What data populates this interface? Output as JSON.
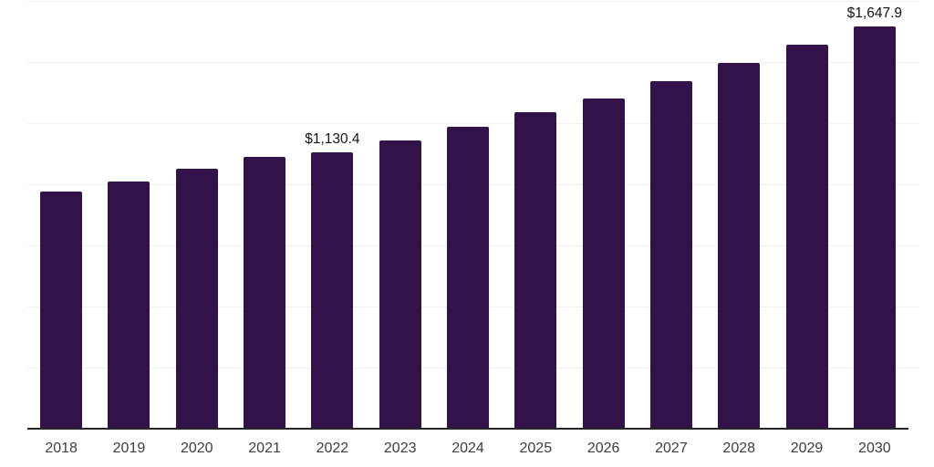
{
  "chart_data": {
    "type": "bar",
    "title": "",
    "xlabel": "",
    "ylabel": "",
    "categories": [
      "2018",
      "2019",
      "2020",
      "2021",
      "2022",
      "2023",
      "2024",
      "2025",
      "2026",
      "2027",
      "2028",
      "2029",
      "2030"
    ],
    "values": [
      972,
      1011,
      1066,
      1113,
      1130.4,
      1182,
      1236,
      1297,
      1354,
      1422,
      1499,
      1571,
      1647.9
    ],
    "value_labels": {
      "2022": "$1,130.4",
      "2030": "$1,647.9"
    },
    "ylim": [
      0,
      1750
    ],
    "gridline_step": 250,
    "grid": true,
    "legend_position": "none",
    "colors": {
      "bar": "#331249",
      "gridline": "#f0f0f0",
      "axis_line": "#262626",
      "tick_label": "#3d3d3d",
      "value_label": "#141414",
      "background": "#ffffff"
    }
  }
}
